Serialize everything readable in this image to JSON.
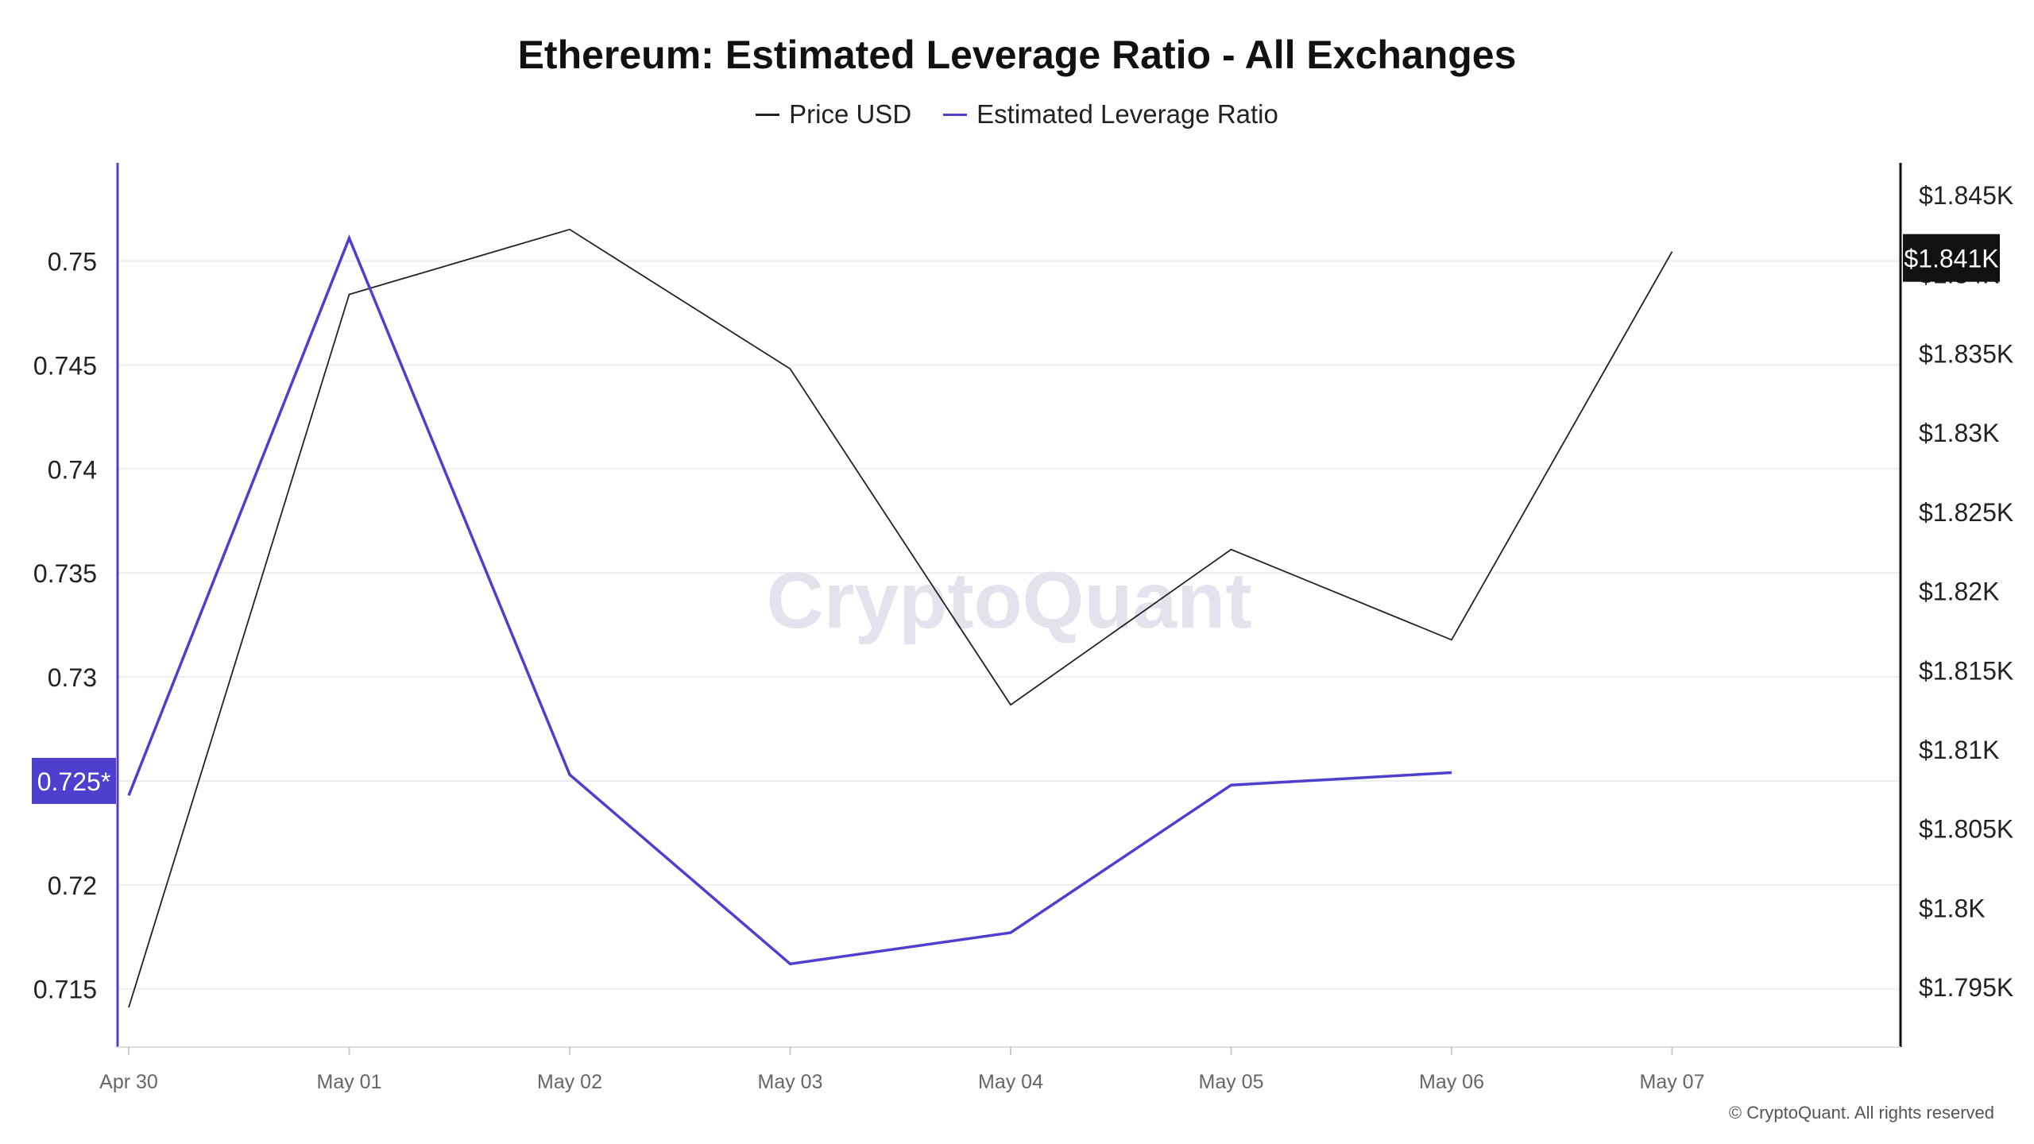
{
  "chart_data": {
    "type": "line",
    "title": "Ethereum: Estimated Leverage Ratio - All Exchanges",
    "watermark": "CryptoQuant",
    "copyright": "© CryptoQuant. All rights reserved",
    "x": [
      "Apr 30",
      "May 01",
      "May 02",
      "May 03",
      "May 04",
      "May 05",
      "May 06",
      "May 07"
    ],
    "series": [
      {
        "name": "Price USD",
        "axis": "right",
        "color": "#222222",
        "values": [
          1793.7,
          1838.7,
          1842.8,
          1834.0,
          1812.8,
          1822.6,
          1816.9,
          1841.4
        ]
      },
      {
        "name": "Estimated Leverage Ratio",
        "axis": "left",
        "color": "#4f3fcf",
        "values": [
          0.7243,
          0.7511,
          0.7253,
          0.7162,
          0.7177,
          0.7248,
          0.7254,
          null
        ]
      }
    ],
    "y_left": {
      "ticks": [
        0.715,
        0.72,
        0.725,
        0.73,
        0.735,
        0.74,
        0.745,
        0.75
      ],
      "tick_labels": [
        "0.715",
        "0.72",
        "0.725",
        "0.73",
        "0.735",
        "0.74",
        "0.745",
        "0.75"
      ],
      "highlight_value": 0.725,
      "highlight_label": "0.725*",
      "highlight_color": "#4f3fcf"
    },
    "y_right": {
      "ticks": [
        1795,
        1800,
        1805,
        1810,
        1815,
        1820,
        1825,
        1830,
        1835,
        1840,
        1845
      ],
      "tick_labels": [
        "$1.795K",
        "$1.8K",
        "$1.805K",
        "$1.81K",
        "$1.815K",
        "$1.82K",
        "$1.825K",
        "$1.83K",
        "$1.835K",
        "$1.84K",
        "$1.845K"
      ],
      "highlight_value": 1841,
      "highlight_label": "$1.841K",
      "highlight_color": "#111111"
    },
    "grid": true,
    "legend_position": "top-center"
  }
}
